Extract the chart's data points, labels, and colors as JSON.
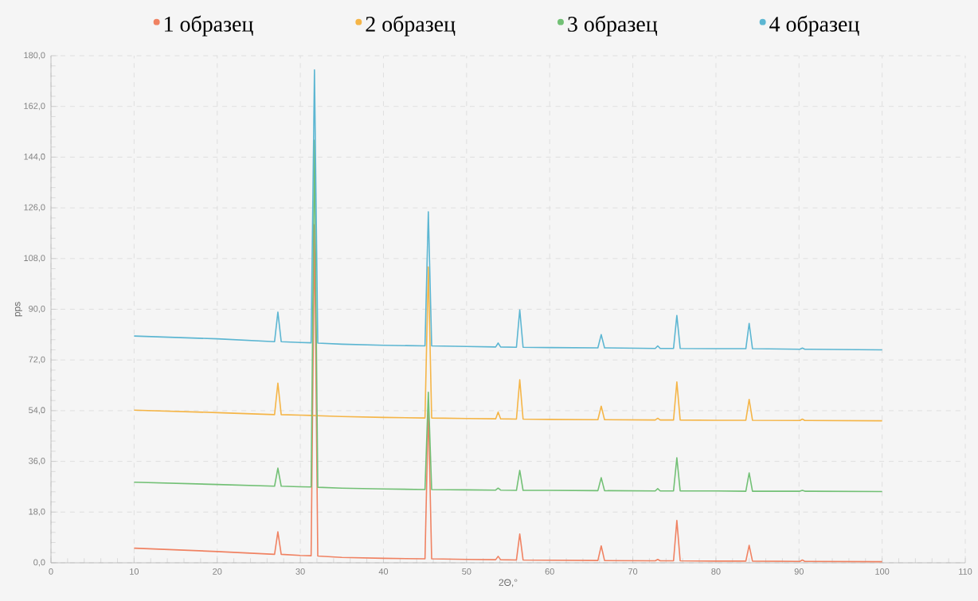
{
  "chart_data": {
    "type": "line",
    "xlabel": "2Θ,°",
    "ylabel": "pps",
    "x": [
      10,
      20,
      26.9,
      27.3,
      27.7,
      30,
      31.3,
      31.7,
      32.1,
      35,
      40,
      45.0,
      45.4,
      45.8,
      50,
      53.5,
      53.8,
      54.1,
      56.0,
      56.4,
      56.8,
      60,
      65.8,
      66.2,
      66.6,
      72.7,
      73.0,
      73.3,
      74.9,
      75.3,
      75.7,
      80,
      83.6,
      84.0,
      84.4,
      90.1,
      90.4,
      90.7,
      100
    ],
    "series": [
      {
        "name": "1 образец",
        "color": "#f08262",
        "values": [
          5.2,
          4.0,
          3.0,
          11,
          3.0,
          2.6,
          2.5,
          120,
          2.4,
          1.9,
          1.6,
          1.4,
          55,
          1.4,
          1.2,
          1.1,
          2.3,
          1.1,
          1.0,
          10.2,
          1.0,
          0.9,
          0.8,
          6,
          0.8,
          0.7,
          1.2,
          0.7,
          0.7,
          15,
          0.7,
          0.6,
          0.6,
          6.2,
          0.6,
          0.5,
          1.0,
          0.5,
          0.4
        ]
      },
      {
        "name": "2 образец",
        "color": "#f5b547",
        "values": [
          54.2,
          53.3,
          52.6,
          63.8,
          52.6,
          52.4,
          52.3,
          null,
          52.2,
          51.9,
          51.6,
          51.4,
          105,
          51.4,
          51.2,
          51.1,
          53.5,
          51.1,
          51.0,
          65,
          51.0,
          50.9,
          50.8,
          55.6,
          50.8,
          50.7,
          51.3,
          50.7,
          50.7,
          64.2,
          50.7,
          50.6,
          50.6,
          58,
          50.6,
          50.5,
          51,
          50.5,
          50.4
        ]
      },
      {
        "name": "3 образец",
        "color": "#72c075",
        "values": [
          28.6,
          27.8,
          27.2,
          33.6,
          27.2,
          27.0,
          26.9,
          150,
          26.8,
          26.5,
          26.2,
          26.0,
          60.5,
          26.0,
          25.9,
          25.8,
          26.5,
          25.8,
          25.7,
          32.8,
          25.7,
          25.7,
          25.6,
          30.2,
          25.6,
          25.5,
          26.3,
          25.5,
          25.5,
          37.3,
          25.5,
          25.5,
          25.4,
          31.9,
          25.4,
          25.4,
          25.7,
          25.4,
          25.3
        ]
      },
      {
        "name": "4 образец",
        "color": "#5cb6d2",
        "values": [
          80.5,
          79.5,
          78.5,
          89,
          78.5,
          78.2,
          78.1,
          175,
          78.0,
          77.6,
          77.2,
          77.0,
          124.6,
          77.0,
          76.8,
          76.6,
          78,
          76.6,
          76.5,
          89.8,
          76.5,
          76.4,
          76.3,
          81,
          76.3,
          76.1,
          77,
          76.1,
          76.1,
          87.8,
          76.1,
          76,
          76,
          85,
          76,
          75.8,
          76.2,
          75.8,
          75.6
        ]
      }
    ],
    "xlim": [
      0,
      110
    ],
    "ylim": [
      0,
      180
    ],
    "xticks": [
      0,
      10,
      20,
      30,
      40,
      50,
      60,
      70,
      80,
      90,
      100,
      110
    ],
    "yticks": [
      {
        "value": 0,
        "label": "0,0"
      },
      {
        "value": 18,
        "label": "18,0"
      },
      {
        "value": 36,
        "label": "36,0"
      },
      {
        "value": 54,
        "label": "54,0"
      },
      {
        "value": 72,
        "label": "72,0"
      },
      {
        "value": 90,
        "label": "90,0"
      },
      {
        "value": 108,
        "label": "108,0"
      },
      {
        "value": 126,
        "label": "126,0"
      },
      {
        "value": 144,
        "label": "144,0"
      },
      {
        "value": 162,
        "label": "162,0"
      },
      {
        "value": 180,
        "label": "180,0"
      }
    ],
    "grid": true,
    "legend": "top",
    "line_style": "solid"
  }
}
